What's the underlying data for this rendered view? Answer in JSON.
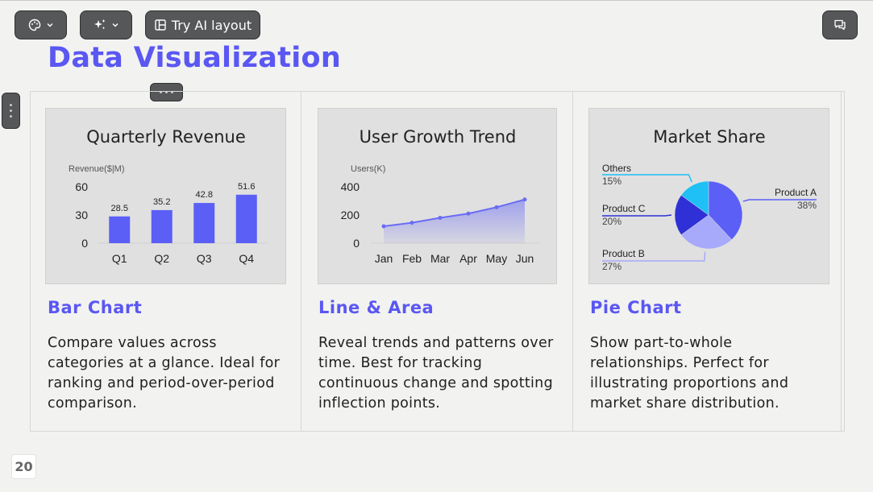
{
  "toolbar": {
    "theme_icon": "palette-icon",
    "ai_icon": "sparkles-icon",
    "layout_icon": "layout-icon",
    "try_ai_layout_label": "Try AI layout",
    "comment_icon": "comments-icon"
  },
  "slide": {
    "title": "Data Visualization",
    "page_number": "20"
  },
  "cards": [
    {
      "heading": "Bar Chart",
      "description": "Compare values across categories at a glance. Ideal for ranking and period-over-period comparison."
    },
    {
      "heading": "Line & Area",
      "description": "Reveal trends and patterns over time. Best for tracking continuous change and spotting inflection points."
    },
    {
      "heading": "Pie Chart",
      "description": "Show part-to-whole relationships. Perfect for illustrating proportions and market share distribution."
    }
  ],
  "colors": {
    "accent": "#5a57f2",
    "bar": "#5b5ff6",
    "line": "#6a6cf5",
    "pie_a": "#5b5ff6",
    "pie_b": "#a7a9fb",
    "pie_c": "#2f31d6",
    "pie_others": "#1ec0f5"
  },
  "chart_data": [
    {
      "type": "bar",
      "title": "Quarterly Revenue",
      "ylabel": "Revenue($|M)",
      "categories": [
        "Q1",
        "Q2",
        "Q3",
        "Q4"
      ],
      "values": [
        28.5,
        35.2,
        42.8,
        51.6
      ],
      "value_labels": [
        "28.5",
        "35.2",
        "42.8",
        "51.6"
      ],
      "yticks": [
        "0",
        "30",
        "60"
      ],
      "ylim": [
        0,
        60
      ],
      "grid": false
    },
    {
      "type": "area",
      "title": "User Growth Trend",
      "ylabel": "Users(K)",
      "categories": [
        "Jan",
        "Feb",
        "Mar",
        "Apr",
        "May",
        "Jun"
      ],
      "values": [
        120,
        145,
        180,
        210,
        255,
        310
      ],
      "yticks": [
        "0",
        "200",
        "400"
      ],
      "ylim": [
        0,
        400
      ],
      "grid": false
    },
    {
      "type": "pie",
      "title": "Market Share",
      "slices": [
        {
          "name": "Product A",
          "value": 38,
          "label": "38%"
        },
        {
          "name": "Product B",
          "value": 27,
          "label": "27%"
        },
        {
          "name": "Product C",
          "value": 20,
          "label": "20%"
        },
        {
          "name": "Others",
          "value": 15,
          "label": "15%"
        }
      ]
    }
  ]
}
